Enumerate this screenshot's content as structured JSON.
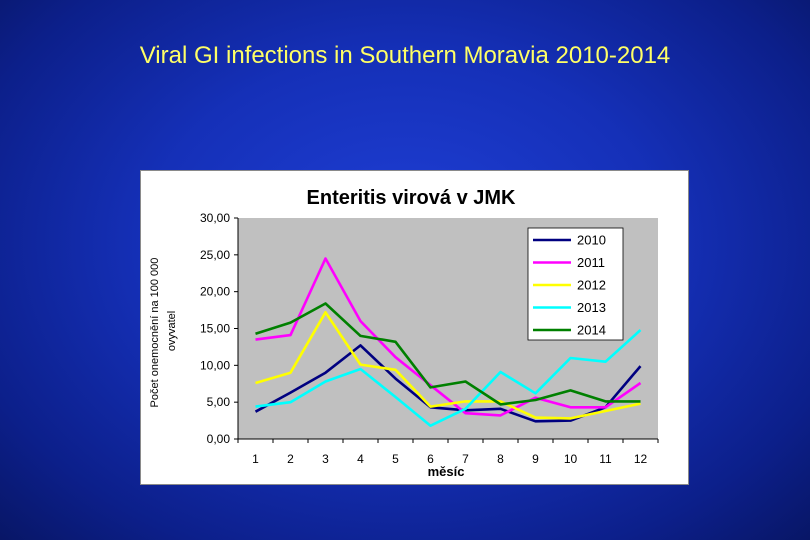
{
  "slide": {
    "title": "Viral GI infections in Southern Moravia 2010-2014"
  },
  "chart_data": {
    "type": "line",
    "title": "Enteritis virová v JMK",
    "xlabel": "měsíc",
    "ylabel_lines": [
      "Počet onemocnění na 100 000",
      "ovyvatel"
    ],
    "x": [
      1,
      2,
      3,
      4,
      5,
      6,
      7,
      8,
      9,
      10,
      11,
      12
    ],
    "x_tick_labels": [
      "1",
      "2",
      "3",
      "4",
      "5",
      "6",
      "7",
      "8",
      "9",
      "10",
      "11",
      "12"
    ],
    "ylim": [
      0,
      30
    ],
    "y_ticks": [
      0,
      5,
      10,
      15,
      20,
      25,
      30
    ],
    "y_tick_labels": [
      "0,00",
      "5,00",
      "10,00",
      "15,00",
      "20,00",
      "25,00",
      "30,00"
    ],
    "grid": false,
    "legend": "top-right",
    "plot_background": "#c0c0c0",
    "series": [
      {
        "name": "2010",
        "color": "#000080",
        "values": [
          3.7,
          6.3,
          9.0,
          12.7,
          8.2,
          4.3,
          3.9,
          4.1,
          2.4,
          2.5,
          4.3,
          9.9
        ]
      },
      {
        "name": "2011",
        "color": "#ff00ff",
        "values": [
          13.5,
          14.1,
          24.5,
          16.0,
          11.1,
          7.3,
          3.5,
          3.2,
          5.6,
          4.3,
          4.3,
          7.6
        ]
      },
      {
        "name": "2012",
        "color": "#ffff00",
        "values": [
          7.6,
          9.0,
          17.2,
          10.1,
          9.4,
          4.4,
          5.1,
          5.1,
          2.9,
          2.8,
          3.8,
          4.8
        ]
      },
      {
        "name": "2013",
        "color": "#00ffff",
        "values": [
          4.4,
          5.0,
          7.8,
          9.5,
          5.7,
          1.8,
          4.1,
          9.1,
          6.2,
          11.0,
          10.5,
          14.8
        ]
      },
      {
        "name": "2014",
        "color": "#008000",
        "values": [
          14.3,
          15.8,
          18.4,
          14.0,
          13.2,
          7.0,
          7.8,
          4.7,
          5.3,
          6.6,
          5.1,
          5.1
        ]
      }
    ]
  }
}
